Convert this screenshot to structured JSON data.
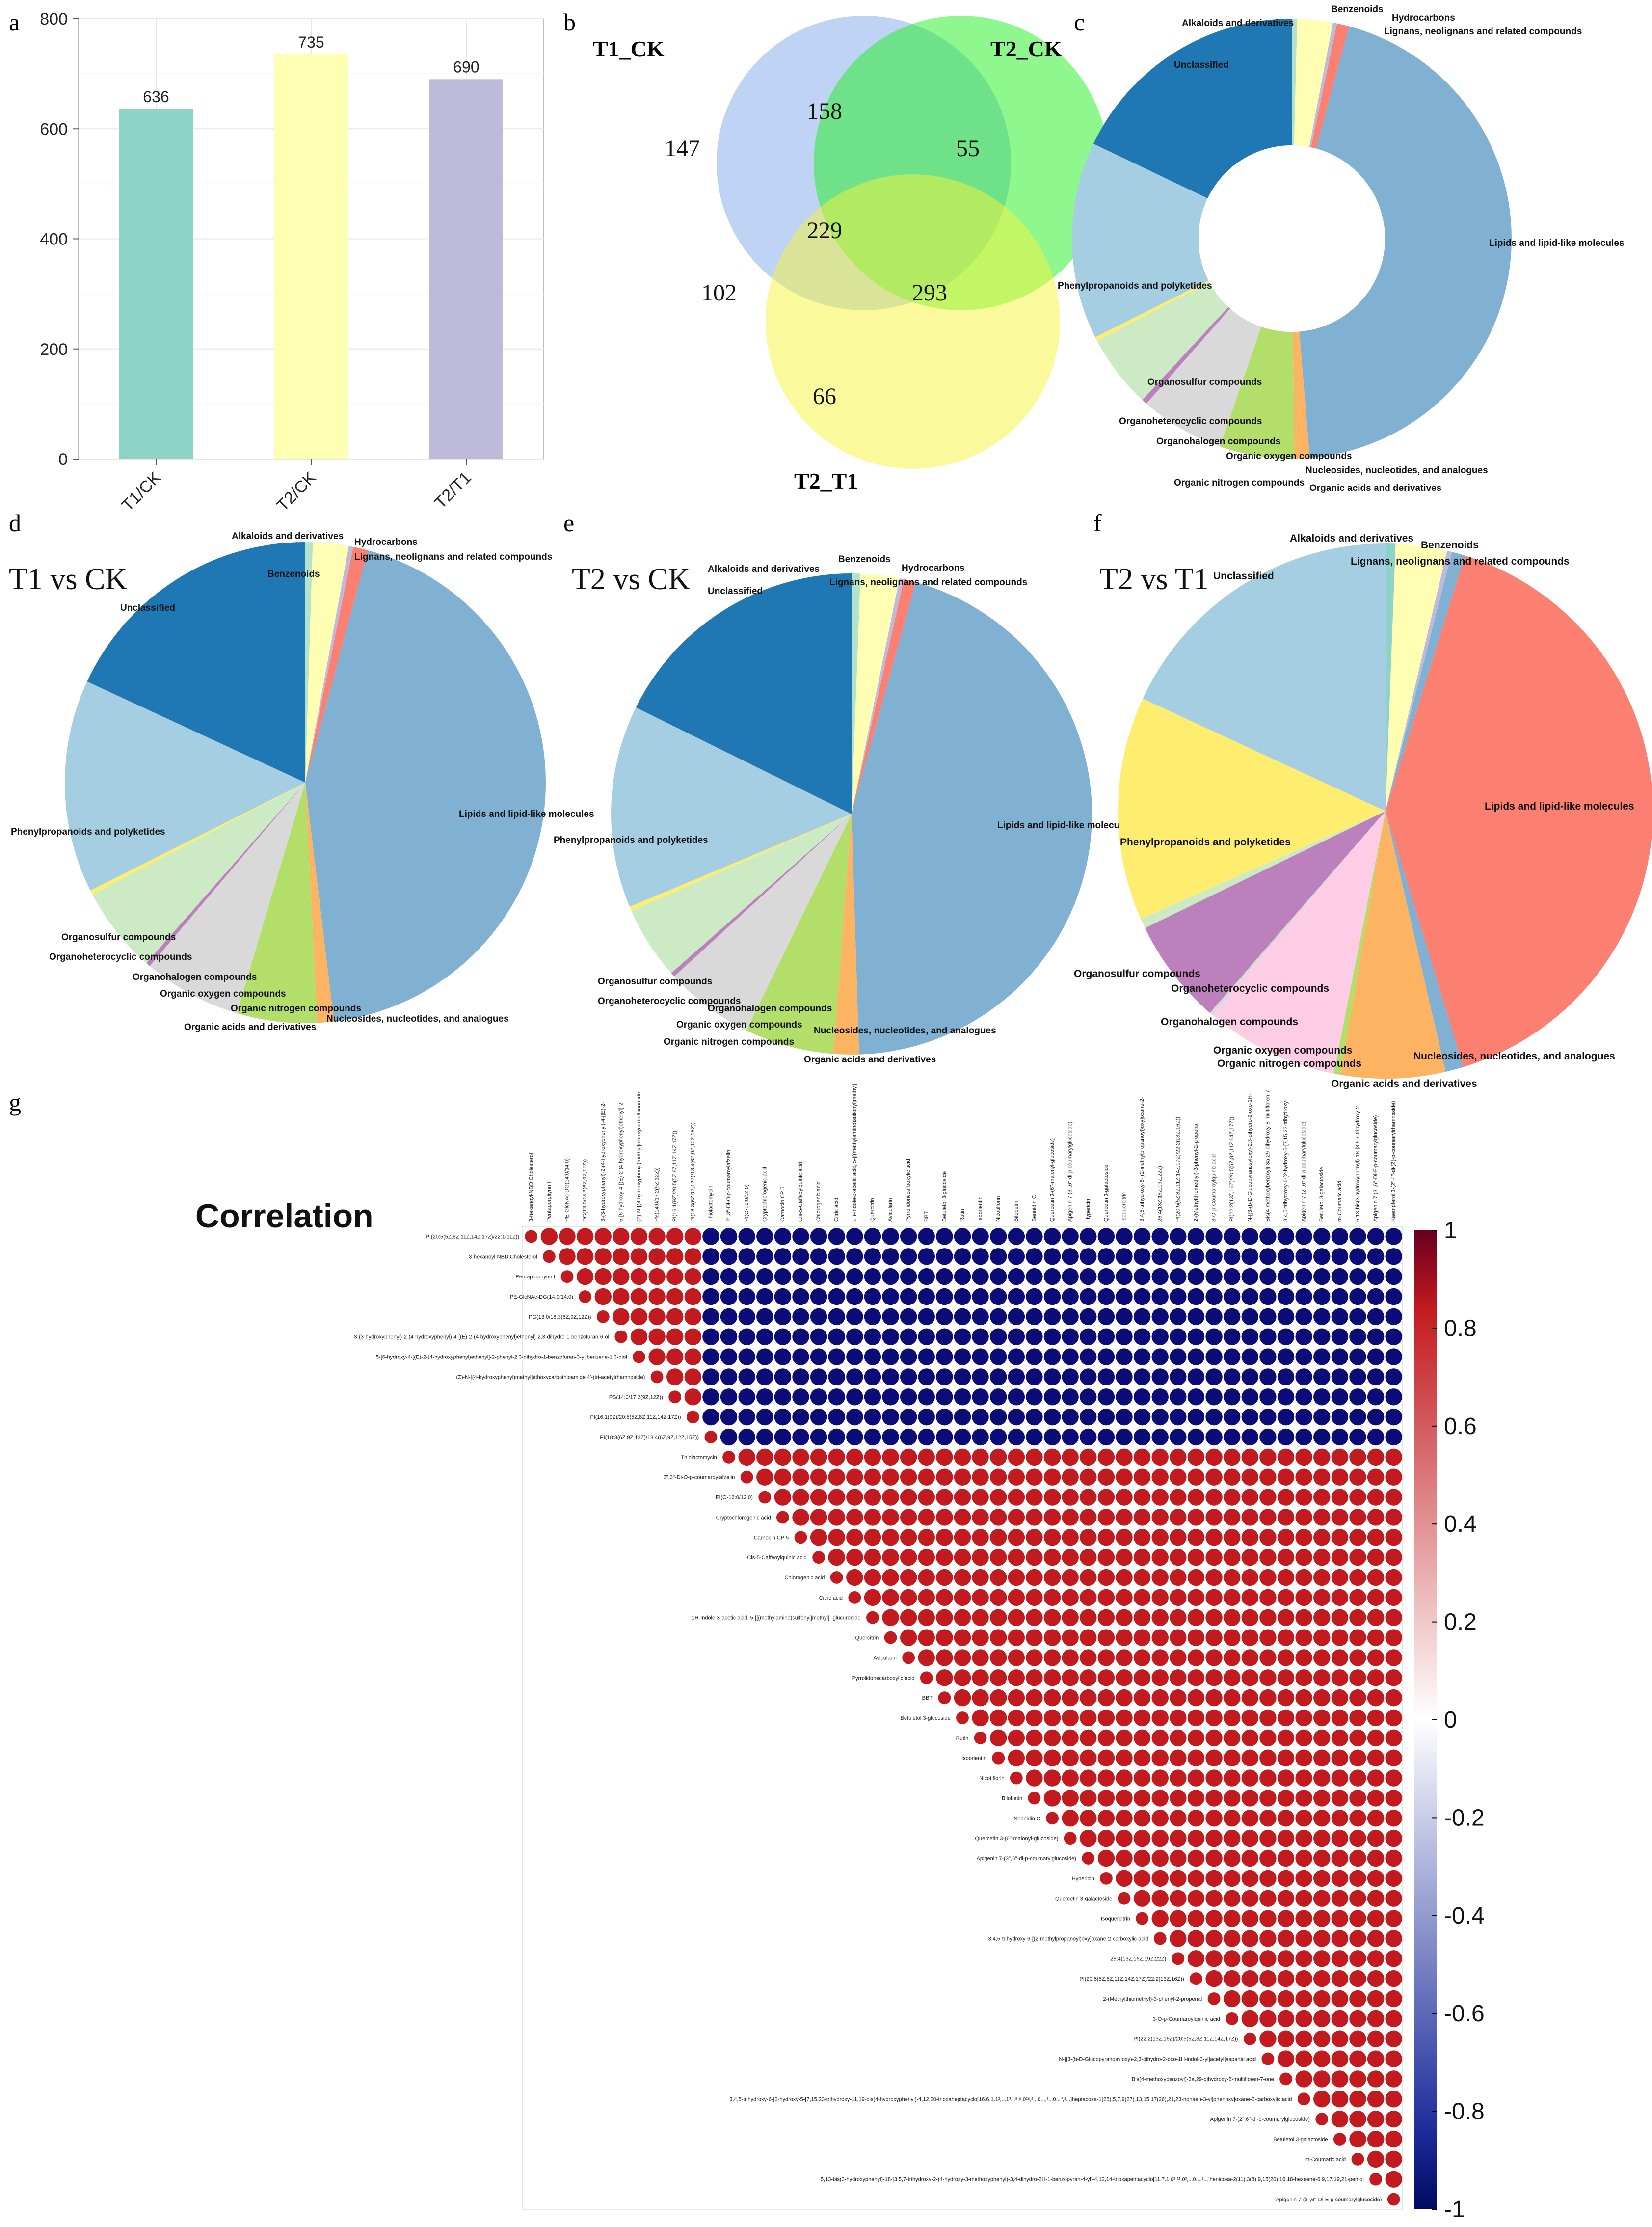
{
  "chart_data": [
    {
      "panel": "a",
      "type": "bar",
      "categories": [
        "T1/CK",
        "T2/CK",
        "T2/T1"
      ],
      "values": [
        636,
        735,
        690
      ],
      "colors": [
        "#8dd3c7",
        "#ffffb3",
        "#bebada"
      ],
      "ylim": [
        0,
        800
      ],
      "yticks": [
        0,
        200,
        400,
        600,
        800
      ],
      "grid": true
    },
    {
      "panel": "b",
      "type": "venn",
      "sets": [
        "T1_CK",
        "T2_CK",
        "T2_T1"
      ],
      "set_colors": [
        "#7fa7ec",
        "#1ef01e",
        "#f5f53b"
      ],
      "regions": {
        "only_T1_CK": 147,
        "only_T2_CK": 55,
        "only_T2_T1": 66,
        "T1_CK_and_T2_CK": 158,
        "T1_CK_and_T2_T1": 102,
        "T2_CK_and_T2_T1": 293,
        "all": 229
      }
    },
    {
      "panel": "c",
      "type": "donut",
      "title": "",
      "slices": [
        {
          "label": "Alkaloids and derivatives",
          "value": 0.4,
          "color": "#b3e2cd"
        },
        {
          "label": "Benzenoids",
          "value": 2.6,
          "color": "#ffffb3"
        },
        {
          "label": "Hydrocarbons",
          "value": 0.3,
          "color": "#bebada"
        },
        {
          "label": "Lignans, neolignans and related compounds",
          "value": 0.9,
          "color": "#fb8072"
        },
        {
          "label": "Lipids and lipid-like molecules",
          "value": 44.5,
          "color": "#80b1d3"
        },
        {
          "label": "Nucleosides, nucleotides, and analogues",
          "value": 0.5,
          "color": "#fdb462"
        },
        {
          "label": "Organic acids and derivatives",
          "value": 0.6,
          "color": "#fdb462"
        },
        {
          "label": "Organic nitrogen compounds",
          "value": 5.5,
          "color": "#b3de69"
        },
        {
          "label": "Organic oxygen compounds",
          "value": 6.2,
          "color": "#d9d9d9"
        },
        {
          "label": "Organohalogen compounds",
          "value": 0.4,
          "color": "#bc80bd"
        },
        {
          "label": "Organoheterocyclic compounds",
          "value": 5.4,
          "color": "#ccebc5"
        },
        {
          "label": "Organosulfur compounds",
          "value": 0.3,
          "color": "#ffed6f"
        },
        {
          "label": "Phenylpropanoids and polyketides",
          "value": 14.5,
          "color": "#a6cee3"
        },
        {
          "label": "Unclassified",
          "value": 17.9,
          "color": "#1f78b4"
        }
      ]
    },
    {
      "panel": "d",
      "type": "pie",
      "title": "T1 vs CK",
      "slices": [
        {
          "label": "Alkaloids and derivatives",
          "value": 0.5,
          "color": "#b3e2cd"
        },
        {
          "label": "Benzenoids",
          "value": 2.4,
          "color": "#ffffb3"
        },
        {
          "label": "Hydrocarbons",
          "value": 0.3,
          "color": "#bebada"
        },
        {
          "label": "Lignans, neolignans and related compounds",
          "value": 1.0,
          "color": "#fb8072"
        },
        {
          "label": "Lipids and lipid-like molecules",
          "value": 43.9,
          "color": "#80b1d3"
        },
        {
          "label": "Nucleosides, nucleotides, and analogues",
          "value": 0.6,
          "color": "#fdb462"
        },
        {
          "label": "Organic acids and derivatives",
          "value": 0.5,
          "color": "#fdb462"
        },
        {
          "label": "Organic nitrogen compounds",
          "value": 5.4,
          "color": "#b3de69"
        },
        {
          "label": "Organic oxygen compounds",
          "value": 6.6,
          "color": "#d9d9d9"
        },
        {
          "label": "Organohalogen compounds",
          "value": 0.3,
          "color": "#bc80bd"
        },
        {
          "label": "Organoheterocyclic compounds",
          "value": 5.8,
          "color": "#ccebc5"
        },
        {
          "label": "Organosulfur compounds",
          "value": 0.3,
          "color": "#ffed6f"
        },
        {
          "label": "Phenylpropanoids and polyketides",
          "value": 14.3,
          "color": "#a6cee3"
        },
        {
          "label": "Unclassified",
          "value": 18.1,
          "color": "#1f78b4"
        }
      ]
    },
    {
      "panel": "e",
      "type": "pie",
      "title": "T2 vs CK",
      "slices": [
        {
          "label": "Alkaloids and derivatives",
          "value": 0.6,
          "color": "#b3e2cd"
        },
        {
          "label": "Benzenoids",
          "value": 2.6,
          "color": "#ffffb3"
        },
        {
          "label": "Hydrocarbons",
          "value": 0.3,
          "color": "#bebada"
        },
        {
          "label": "Lignans, neolignans and related compounds",
          "value": 0.8,
          "color": "#fb8072"
        },
        {
          "label": "Lipids and lipid-like molecules",
          "value": 45.2,
          "color": "#80b1d3"
        },
        {
          "label": "Nucleosides, nucleotides, and analogues",
          "value": 0.5,
          "color": "#fdb462"
        },
        {
          "label": "Organic acids and derivatives",
          "value": 1.2,
          "color": "#fdb462"
        },
        {
          "label": "Organic nitrogen compounds",
          "value": 6.0,
          "color": "#b3de69"
        },
        {
          "label": "Organic oxygen compounds",
          "value": 6.0,
          "color": "#d9d9d9"
        },
        {
          "label": "Organohalogen compounds",
          "value": 0.3,
          "color": "#bc80bd"
        },
        {
          "label": "Organoheterocyclic compounds",
          "value": 4.9,
          "color": "#ccebc5"
        },
        {
          "label": "Organosulfur compounds",
          "value": 0.3,
          "color": "#ffed6f"
        },
        {
          "label": "Phenylpropanoids and polyketides",
          "value": 13.6,
          "color": "#a6cee3"
        },
        {
          "label": "Unclassified",
          "value": 17.7,
          "color": "#1f78b4"
        }
      ]
    },
    {
      "panel": "f",
      "type": "pie",
      "title": "T2 vs T1",
      "slices": [
        {
          "label": "Alkaloids and derivatives",
          "value": 0.6,
          "color": "#8dd3c7"
        },
        {
          "label": "Benzenoids",
          "value": 3.1,
          "color": "#ffffb3"
        },
        {
          "label": "Hydrocarbons",
          "value": 0.3,
          "color": "#bebada"
        },
        {
          "label": "Lignans, neolignans and related compounds",
          "value": 0.8,
          "color": "#80b1d3"
        },
        {
          "label": "Lipids and lipid-like molecules",
          "value": 40.5,
          "color": "#fb8072"
        },
        {
          "label": "Nucleosides, nucleotides, and analogues",
          "value": 1.1,
          "color": "#80b1d3"
        },
        {
          "label": "Organic acids and derivatives",
          "value": 6.3,
          "color": "#fdb462"
        },
        {
          "label": "Organic nitrogen compounds",
          "value": 0.4,
          "color": "#b3de69"
        },
        {
          "label": "Organic oxygen compounds",
          "value": 8.1,
          "color": "#fccde5"
        },
        {
          "label": "Organohalogen compounds",
          "value": 0.2,
          "color": "#d9d9d9"
        },
        {
          "label": "Organoheterocyclic compounds",
          "value": 6.4,
          "color": "#bc80bd"
        },
        {
          "label": "Organosulfur compounds",
          "value": 0.6,
          "color": "#ccebc5"
        },
        {
          "label": "Phenylpropanoids and polyketides",
          "value": 13.5,
          "color": "#ffed6f"
        },
        {
          "label": "Unclassified",
          "value": 18.1,
          "color": "#a6cee3"
        }
      ]
    },
    {
      "panel": "g",
      "type": "heatmap",
      "title": "Correlation",
      "colorbar_ticks": [
        "1",
        "0.8",
        "0.6",
        "0.4",
        "0.2",
        "0",
        "-0.2",
        "-0.4",
        "-0.6",
        "-0.8",
        "-1"
      ],
      "colorbar_range": [
        -1,
        1
      ],
      "group_a_count": 11,
      "row_labels": [
        "PI(20:5(5Z,8Z,11Z,14Z,17Z)/22:1(11Z))",
        "3-hexanoyl-NBD Cholesterol",
        "Pentaporphyrin I",
        "PE-GlcNAc-DG(14:0/14:0)",
        "PG(13:0/18:3(6Z,9Z,12Z))",
        "3-(3-hydroxyphenyl)-2-(4-hydroxyphenyl)-4-[(E)-2-(4-hydroxyphenyl)ethenyl]-2,3-dihydro-1-benzofuran-6-ol",
        "5-[6-hydroxy-4-[(E)-2-(4-hydroxyphenyl)ethenyl]-2-phenyl-2,3-dihydro-1-benzofuran-3-yl]benzene-1,3-diol",
        "(Z)-N-[(4-hydroxyphenyl)methyl]ethoxycarbothioamide 4'-(tri-acetylrhamnoside)",
        "PS(14:0/17:2(9Z,12Z))",
        "PI(16:1(9Z)/20:5(5Z,8Z,11Z,14Z,17Z))",
        "PI(18:3(6Z,9Z,12Z)/18:4(6Z,9Z,12Z,15Z))",
        "Thiolactomycin",
        "2'',3''-Di-O-p-coumaroylafzelin",
        "PI(O-16:0/12:0)",
        "Cryptochlorogenic acid",
        "Carnocin CP 5",
        "Cis-5-Caffeoylquinic acid",
        "Chlorogenic acid",
        "Citric acid",
        "1H-Indole-3-acetic acid, 5-[[(methylamino)sulfonyl]methyl]- glucuronide",
        "Quercitrin",
        "Avicularin",
        "Pyrrolidonecarboxylic acid",
        "BBT",
        "Betuletol 3-glucoside",
        "Rutin",
        "Isoorientin",
        "Nicotiflorin",
        "Bilobetin",
        "Sennidin C",
        "Quercetin 3-(6''-malonyl-glucoside)",
        "Apigenin 7-(3'',6''-di-p-coumarylglucoside)",
        "Hypericin",
        "Quercetin 3-galactoside",
        "Isoquercitrin",
        "3,4,5-trihydroxy-6-[(2-methylpropanoyl)oxy]oxane-2-carboxylic acid",
        "28:4(13Z,16Z,19Z,22Z)",
        "PI(20:5(5Z,8Z,11Z,14Z,17Z)/22:2(13Z,16Z))",
        "2-(Methylthiomethyl)-3-phenyl-2-propenal",
        "3-O-p-Coumaroylquinic acid",
        "PI(22:2(13Z,16Z)/20:5(5Z,8Z,11Z,14Z,17Z))",
        "N-[[3-(b-D-Glucopyranosyloxy)-2,3-dihydro-2-oxo-1H-indol-3-yl]acetyl]aspartic acid",
        "Bis(4-methoxybenzoyl)-3a,29-dihydroxy-8-multifloren-7-one",
        "3,4,5-trihydroxy-6-[2-hydroxy-5-[7,15,23-trihydroxy-11,19-bis(4-hydroxyphenyl)-4,12,20-trioxaheptacyclo[16.6.1.1²,...1³...⁵,⁹.0²⁶,²...0...,³...0...⁰,²...]heptacosa-1(25),5,7,9(27),13,15,17(26),21,23-nonaen-3-yl]phenoxy]oxane-2-carboxylic acid",
        "Apigenin 7-(2'',6''-di-p-coumarylglucoside)",
        "Betuletol 3-galactoside",
        "m-Coumaric acid",
        "5,13-bis(3-hydroxyphenyl)-18-[3,5,7-trihydroxy-2-(4-hydroxy-3-methoxyphenyl)-3,4-dihydro-2H-1-benzopyran-4-yl]-4,12,14-trioxapentacyclo[11.7.1.0²,¹¹.0³,...0...,²...]henicosa-2(11),3(8),9,15(20),16,18-hexaene-6,9,17,19,21-pentol",
        "Apigenin 7-(3'',6''-Di-E-p-coumarylglucoside)"
      ],
      "column_labels": [
        "3-hexanoyl-NBD Cholesterol",
        "Pentaporphyrin I",
        "PE-GlcNAc-DG(14:0/14:0)",
        "PG(13:0/18:3(6Z,9Z,12Z))",
        "3-(3-hydroxyphenyl)-2-(4-hydroxyphenyl)-4-[(E)-2-",
        "5-[6-hydroxy-4-[(E)-2-(4-hydroxyphenyl)ethenyl]-2-",
        "(Z)-N-[(4-hydroxyphenyl)methyl]ethoxycarbothioamide",
        "PS(14:0/17:2(9Z,12Z))",
        "PI(16:1(9Z)/20:5(5Z,8Z,11Z,14Z,17Z))",
        "PI(18:3(6Z,9Z,12Z)/18:4(6Z,9Z,12Z,15Z))",
        "Thiolactomycin",
        "2'',3''-Di-O-p-coumaroylafzelin",
        "PI(O-16:0/12:0)",
        "Cryptochlorogenic acid",
        "Carnocin CP 5",
        "Cis-5-Caffeoylquinic acid",
        "Chlorogenic acid",
        "Citric acid",
        "1H-Indole-3-acetic acid, 5-[[(methylamino)sulfonyl]methyl]",
        "Quercitrin",
        "Avicularin",
        "Pyrrolidonecarboxylic acid",
        "BBT",
        "Betuletol 3-glucoside",
        "Rutin",
        "Isoorientin",
        "Nicotiflorin",
        "Bilobetin",
        "Sennidin C",
        "Quercetin 3-(6''-malonyl-glucoside)",
        "Apigenin 7-(3'',6''-di-p-coumarylglucoside)",
        "Hypericin",
        "Quercetin 3-galactoside",
        "Isoquercitrin",
        "3,4,5-trihydroxy-6-[(2-methylpropanoyl)oxy]oxane-2-",
        "28:4(13Z,16Z,19Z,22Z)",
        "PI(20:5(5Z,8Z,11Z,14Z,17Z)/22:2(13Z,16Z))",
        "2-(Methylthiomethyl)-3-phenyl-2-propenal",
        "3-O-p-Coumaroylquinic acid",
        "PI(22:2(13Z,16Z)/20:5(5Z,8Z,11Z,14Z,17Z))",
        "N-[[3-(b-D-Glucopyranosyloxy)-2,3-dihydro-2-oxo-1H-",
        "Bis(4-methoxybenzoyl)-3a,29-dihydroxy-8-multifloren-7-",
        "3,4,5-trihydroxy-6-[2-hydroxy-5-[7,15,23-trihydroxy-",
        "Apigenin 7-(2'',6''-di-p-coumarylglucoside)",
        "Betuletol 3-galactoside",
        "m-Coumaric acid",
        "5,13-bis(3-hydroxyphenyl)-18-[3,5,7-trihydroxy-2-",
        "Apigenin 7-(3'',6''-Di-E-p-coumarylglucoside)",
        "Kaempferol 3-(2'',4''-di-(Z)-p-coumarylrhamnoside)"
      ]
    }
  ],
  "panel_letters": {
    "a": "a",
    "b": "b",
    "c": "c",
    "d": "d",
    "e": "e",
    "f": "f",
    "g": "g"
  },
  "style": {
    "grid_color": "#e6e6e6",
    "positive_color": "#c21a1f",
    "negative_color": "#0c0c78"
  }
}
